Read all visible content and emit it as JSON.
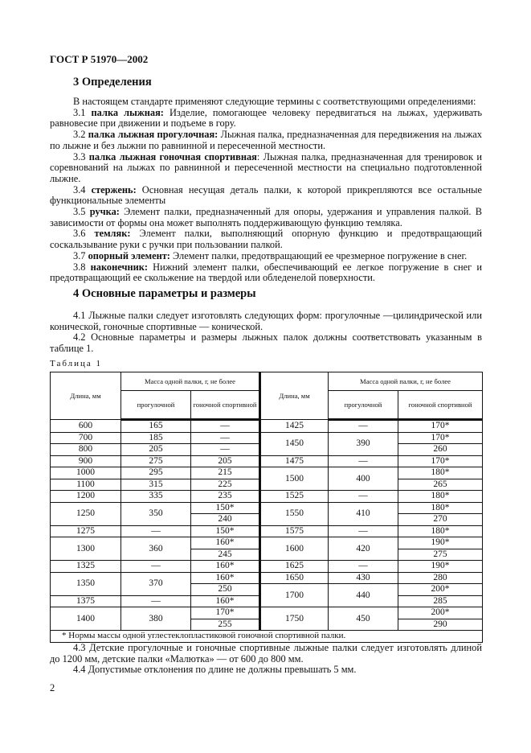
{
  "header": {
    "doc_id": "ГОСТ Р 51970—2002"
  },
  "section3": {
    "title": "3  Определения",
    "paragraphs": [
      {
        "num": "",
        "term": "",
        "text": "В настоящем стандарте применяют следующие термины с соответствующими определениями:"
      },
      {
        "num": "3.1 ",
        "term": "палка лыжная:",
        "text": " Изделие, помогающее человеку передвигаться на лыжах, удерживать равновесие при движении и подъеме в гору."
      },
      {
        "num": "3.2 ",
        "term": "палка лыжная прогулочная:",
        "text": " Лыжная палка, предназначенная для передвижения на лыжах по лыжне и без лыжни по равнинной и пересеченной местности."
      },
      {
        "num": "3.3 ",
        "term": "палка лыжная гоночная спортивная",
        "text": ": Лыжная палка, предназначенная для тренировок и соревнований на лыжах по равнинной и пересеченной местности на специально подготовленной лыжне."
      },
      {
        "num": "3.4 ",
        "term": "стержень:",
        "text": " Основная несущая деталь палки, к которой прикрепляются все остальные функциональные элементы"
      },
      {
        "num": "3.5 ",
        "term": "ручка:",
        "text": " Элемент палки, предназначенный для опоры, удержания и управления палкой. В зависимости от формы она может выполнять поддерживающую функцию темляка."
      },
      {
        "num": "3.6 ",
        "term": "темляк:",
        "text": " Элемент палки, выполняющий опорную функцию и предотвращающий соскальзывание руки с ручки при пользовании палкой."
      },
      {
        "num": "3.7 ",
        "term": "опорный элемент:",
        "text": " Элемент палки, предотвращающий ее чрезмерное погружение в снег."
      },
      {
        "num": "3.8 ",
        "term": "наконечник:",
        "text": " Нижний элемент палки, обеспечивающий ее легкое погружение в снег и предотвращающий ее скольжение на твердой или обледенелой поверхности."
      }
    ]
  },
  "section4": {
    "title": "4  Основные параметры и размеры",
    "p41": "4.1 Лыжные палки следует изготовлять следующих форм: прогулочные —цилиндрической или конической, гоночные спортивные — конической.",
    "p42": "4.2 Основные параметры и размеры лыжных палок должны соответствовать указанным в таблице 1.",
    "p43": "4.3 Детские прогулочные и гоночные спортивные лыжные палки следует изготовлять длиной до 1200 мм, детские палки «Малютка» — от 600 до 800 мм.",
    "p44": "4.4 Допустимые отклонения по длине не должны превышать 5 мм."
  },
  "table1": {
    "label": "Таблица 1",
    "headers": {
      "length": "Длина, мм",
      "mass": "Масса одной палки, г, не более",
      "walking": "прогулочной",
      "racing": "гоночной спортивной"
    },
    "left": [
      {
        "length": "600",
        "walking": "165",
        "racing": [
          "—"
        ]
      },
      {
        "length": "700",
        "walking": "185",
        "racing": [
          "—"
        ]
      },
      {
        "length": "800",
        "walking": "205",
        "racing": [
          "—"
        ]
      },
      {
        "length": "900",
        "walking": "275",
        "racing": [
          "205"
        ]
      },
      {
        "length": "1000",
        "walking": "295",
        "racing": [
          "215"
        ]
      },
      {
        "length": "1100",
        "walking": "315",
        "racing": [
          "225"
        ]
      },
      {
        "length": "1200",
        "walking": "335",
        "racing": [
          "235"
        ]
      },
      {
        "length": "1250",
        "walking": "350",
        "racing": [
          "150*",
          "240"
        ]
      },
      {
        "length": "1275",
        "walking": "—",
        "racing": [
          "150*"
        ]
      },
      {
        "length": "1300",
        "walking": "360",
        "racing": [
          "160*",
          "245"
        ]
      },
      {
        "length": "1325",
        "walking": "—",
        "racing": [
          "160*"
        ]
      },
      {
        "length": "1350",
        "walking": "370",
        "racing": [
          "160*",
          "250"
        ]
      },
      {
        "length": "1375",
        "walking": "—",
        "racing": [
          "160*"
        ]
      },
      {
        "length": "1400",
        "walking": "380",
        "racing": [
          "170*",
          "255"
        ]
      }
    ],
    "right": [
      {
        "length": "1425",
        "walking": "—",
        "racing": [
          "170*"
        ]
      },
      {
        "length": "1450",
        "walking": "390",
        "racing": [
          "170*",
          "260"
        ]
      },
      {
        "length": "1475",
        "walking": "—",
        "racing": [
          "170*"
        ]
      },
      {
        "length": "1500",
        "walking": "400",
        "racing": [
          "180*",
          "265"
        ]
      },
      {
        "length": "1525",
        "walking": "—",
        "racing": [
          "180*"
        ]
      },
      {
        "length": "1550",
        "walking": "410",
        "racing": [
          "180*",
          "270"
        ]
      },
      {
        "length": "1575",
        "walking": "—",
        "racing": [
          "180*"
        ]
      },
      {
        "length": "1600",
        "walking": "420",
        "racing": [
          "190*",
          "275"
        ]
      },
      {
        "length": "1625",
        "walking": "—",
        "racing": [
          "190*"
        ]
      },
      {
        "length": "1650",
        "walking": "430",
        "racing": [
          "280"
        ]
      },
      {
        "length": "1700",
        "walking": "440",
        "racing": [
          "200*",
          "285"
        ]
      },
      {
        "length": "1750",
        "walking": "450",
        "racing": [
          "200*",
          "290"
        ]
      }
    ],
    "footnote": "*  Нормы массы одной углестеклопластиковой гоночной спортивной палки."
  },
  "footer": {
    "page_number": "2"
  }
}
